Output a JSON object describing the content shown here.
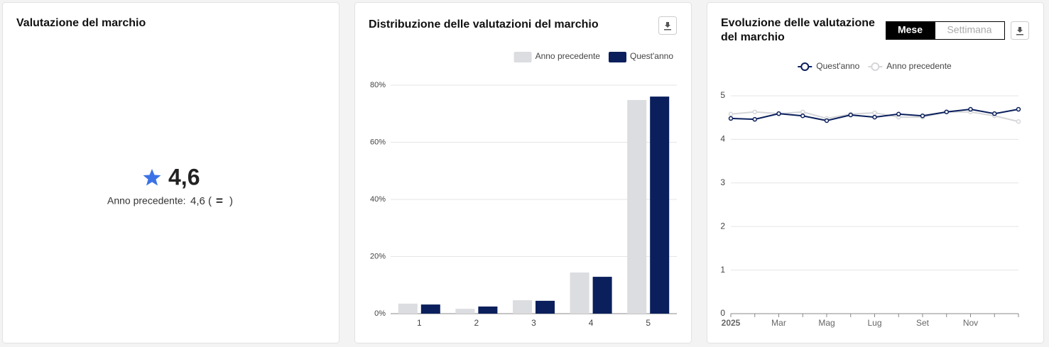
{
  "kpi": {
    "title": "Valutazione del marchio",
    "value": "4,6",
    "previous_label": "Anno precedente:",
    "previous_value": "4,6",
    "open": "(",
    "change": "=",
    "close": ")",
    "color": "#3b73e6"
  },
  "chart_data": [
    {
      "type": "bar",
      "title": "Distribuzione delle valutazioni del marchio",
      "categories": [
        "1",
        "2",
        "3",
        "4",
        "5"
      ],
      "series": [
        {
          "name": "Anno precedente",
          "color": "#dcdde0",
          "values": [
            3.5,
            1.7,
            4.7,
            14.4,
            74.8
          ]
        },
        {
          "name": "Quest'anno",
          "color": "#0a1f5c",
          "values": [
            3.2,
            2.5,
            4.5,
            12.9,
            76
          ]
        }
      ],
      "ylim": [
        0,
        80
      ],
      "yticks": [
        {
          "value": 0,
          "label": "0%"
        },
        {
          "value": 20,
          "label": "20%"
        },
        {
          "value": 40,
          "label": "40%"
        },
        {
          "value": 60,
          "label": "60%"
        },
        {
          "value": 80,
          "label": "80%"
        }
      ],
      "grid": true,
      "legend": "top-right"
    },
    {
      "type": "line",
      "title": [
        "Evoluzione delle valutazione",
        "del marchio"
      ],
      "toggle": [
        {
          "label": "Mese",
          "active": true
        },
        {
          "label": "Settimana",
          "active": false
        }
      ],
      "categories": [
        "2025",
        null,
        "Mar",
        null,
        "Mag",
        null,
        "Lug",
        null,
        "Set",
        null,
        "Nov",
        null,
        null
      ],
      "series": [
        {
          "name": "Quest'anno",
          "color": "#0a1f5c",
          "values": [
            4.48,
            4.46,
            4.59,
            4.54,
            4.43,
            4.56,
            4.51,
            4.58,
            4.54,
            4.63,
            4.69,
            4.59,
            4.69
          ]
        },
        {
          "name": "Anno precedente",
          "color": "#d5d6d9",
          "values": [
            4.58,
            4.63,
            4.59,
            4.63,
            4.48,
            4.58,
            4.61,
            4.51,
            4.51,
            4.63,
            4.63,
            4.54,
            4.41
          ]
        }
      ],
      "ylim": [
        0,
        5
      ],
      "yticks": [
        0,
        1,
        2,
        3,
        4,
        5
      ],
      "grid": true,
      "legend": "top-center"
    }
  ]
}
